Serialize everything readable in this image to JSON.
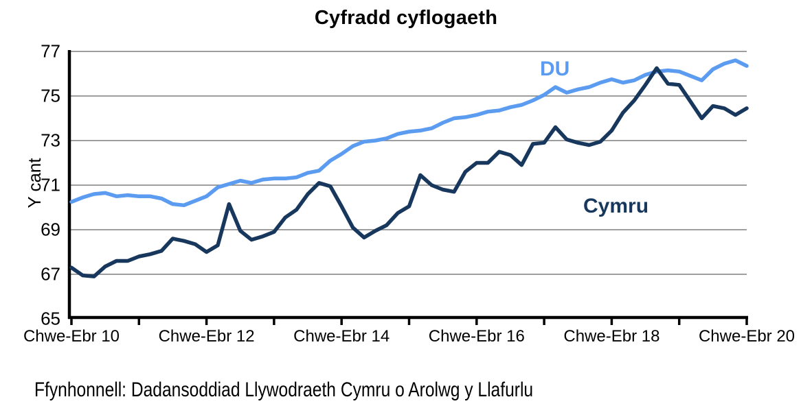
{
  "header": {
    "title": "Cyfradd cyflogaeth"
  },
  "source_note": "Ffynhonnell: Dadansoddiad Llywodraeth Cymru o Arolwg y Llafurlu",
  "colors": {
    "du_line": "#5B9BF0",
    "cymru_line": "#17375D",
    "gridline": "#7F7F7F",
    "axis": "#000000",
    "background": "#FFFFFF"
  },
  "chart_data": {
    "type": "line",
    "title": "Cyfradd cyflogaeth",
    "xlabel": "",
    "ylabel": "Y cant",
    "ylim": [
      65,
      77
    ],
    "grid": "horizontal-only",
    "y_ticks": [
      77,
      75,
      73,
      71,
      69,
      67,
      65
    ],
    "x_tick_labels": [
      "Chwe-Ebr 10",
      "Chwe-Ebr 12",
      "Chwe-Ebr 14",
      "Chwe-Ebr 16",
      "Chwe-Ebr 18",
      "Chwe-Ebr 20"
    ],
    "x_minor_ticks": "yearly (one unlabeled tick between each labeled tick)",
    "x_start": "Chwe-Ebr 2010",
    "x_end": "Chwe-Ebr 2020",
    "x_step_months": 2,
    "legend_position": "labels next to lines (DU above blue line, Cymru below navy line)",
    "series": [
      {
        "name": "DU",
        "color": "#5B9BF0",
        "values": [
          70.25,
          70.45,
          70.6,
          70.65,
          70.5,
          70.55,
          70.5,
          70.5,
          70.4,
          70.15,
          70.1,
          70.3,
          70.5,
          70.9,
          71.05,
          71.2,
          71.1,
          71.25,
          71.3,
          71.3,
          71.35,
          71.55,
          71.65,
          72.1,
          72.4,
          72.75,
          72.95,
          73.0,
          73.1,
          73.3,
          73.4,
          73.45,
          73.55,
          73.8,
          74.0,
          74.05,
          74.15,
          74.3,
          74.35,
          74.5,
          74.6,
          74.8,
          75.05,
          75.4,
          75.15,
          75.3,
          75.4,
          75.6,
          75.75,
          75.6,
          75.7,
          75.95,
          76.1,
          76.15,
          76.1,
          75.9,
          75.7,
          76.2,
          76.45,
          76.6,
          76.35
        ]
      },
      {
        "name": "Cymru",
        "color": "#17375D",
        "values": [
          67.3,
          66.95,
          66.9,
          67.35,
          67.6,
          67.6,
          67.8,
          67.9,
          68.05,
          68.6,
          68.5,
          68.35,
          68.0,
          68.3,
          70.15,
          68.95,
          68.55,
          68.7,
          68.9,
          69.55,
          69.9,
          70.6,
          71.1,
          70.95,
          70.05,
          69.1,
          68.65,
          68.95,
          69.2,
          69.75,
          70.05,
          71.45,
          71.0,
          70.8,
          70.7,
          71.6,
          72.0,
          72.0,
          72.5,
          72.35,
          71.9,
          72.85,
          72.9,
          73.6,
          73.05,
          72.9,
          72.8,
          72.95,
          73.45,
          74.25,
          74.8,
          75.5,
          76.25,
          75.55,
          75.5,
          74.75,
          74.0,
          74.55,
          74.45,
          74.15,
          74.45
        ]
      }
    ]
  }
}
